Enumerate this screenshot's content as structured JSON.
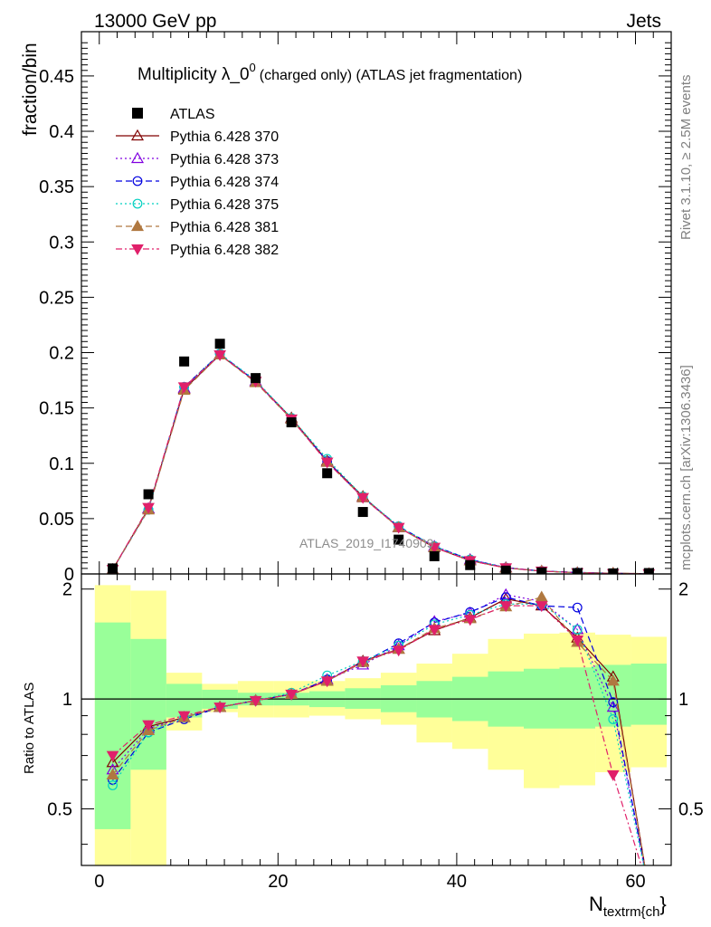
{
  "header": {
    "left": "13000 GeV pp",
    "right": "Jets",
    "side_top": "Rivet 3.1.10, ≥ 2.5M events",
    "side_bottom": "mcplots.cern.ch [arXiv:1306.3436]"
  },
  "chart_data": {
    "type": "line",
    "title": "Multiplicity λ_0",
    "title_sup": "0",
    "title_suffix": "(charged only) (ATLAS jet fragmentation)",
    "ylabel": "fraction/bin",
    "ratio_ylabel": "Ratio to ATLAS",
    "xlabel_main": "N",
    "xlabel_sub": "textrm{ch",
    "xlabel_close": "}",
    "watermark": "ATLAS_2019_I1740909",
    "xlim": [
      -2,
      64
    ],
    "ylim": [
      0,
      0.49
    ],
    "ratio_ylim": [
      0.35,
      2.2
    ],
    "x_ticks": [
      "0",
      "20",
      "40",
      "60"
    ],
    "y_ticks": [
      "0",
      "0.05",
      "0.1",
      "0.15",
      "0.2",
      "0.25",
      "0.3",
      "0.35",
      "0.4",
      "0.45"
    ],
    "ratio_ticks": [
      "0.5",
      "1",
      "2"
    ],
    "grid": false,
    "legend_position": "top-left",
    "x": [
      1.5,
      5.5,
      9.5,
      13.5,
      17.5,
      21.5,
      25.5,
      29.5,
      33.5,
      37.5,
      41.5,
      45.5,
      49.5,
      53.5,
      57.5,
      61.5
    ],
    "data": {
      "name": "ATLAS",
      "values": [
        0.005,
        0.072,
        0.192,
        0.208,
        0.177,
        0.137,
        0.091,
        0.056,
        0.031,
        0.016,
        0.008,
        0.003,
        0.0015,
        0.0008,
        0.0005,
        0.0008
      ]
    },
    "series": [
      {
        "name": "Pythia 6.428 370",
        "color": "#800000",
        "marker": "triangle-open",
        "dash": "solid",
        "values": [
          0.004,
          0.059,
          0.167,
          0.198,
          0.174,
          0.141,
          0.102,
          0.07,
          0.042,
          0.024,
          0.012,
          0.0055,
          0.0025,
          0.0012,
          0.0006,
          0.0002
        ],
        "ratio": [
          0.67,
          0.84,
          0.89,
          0.95,
          0.99,
          1.03,
          1.12,
          1.27,
          1.37,
          1.54,
          1.67,
          1.88,
          1.8,
          1.47,
          1.15,
          0.3
        ]
      },
      {
        "name": "Pythia 6.428 373",
        "color": "#8000e0",
        "marker": "triangle-open",
        "dash": "dotted",
        "values": [
          0.004,
          0.059,
          0.168,
          0.198,
          0.174,
          0.14,
          0.101,
          0.069,
          0.042,
          0.025,
          0.013,
          0.0058,
          0.0026,
          0.0012,
          0.0005,
          0.0001
        ],
        "ratio": [
          0.64,
          0.83,
          0.89,
          0.95,
          0.99,
          1.03,
          1.13,
          1.24,
          1.4,
          1.63,
          1.72,
          1.93,
          1.85,
          1.55,
          0.95,
          0.3
        ]
      },
      {
        "name": "Pythia 6.428 374",
        "color": "#0000e0",
        "marker": "circle-open",
        "dash": "dashed",
        "values": [
          0.004,
          0.058,
          0.169,
          0.199,
          0.174,
          0.14,
          0.102,
          0.069,
          0.043,
          0.025,
          0.013,
          0.0057,
          0.0026,
          0.0014,
          0.0005,
          0.0001
        ],
        "ratio": [
          0.6,
          0.81,
          0.88,
          0.95,
          0.99,
          1.03,
          1.13,
          1.26,
          1.42,
          1.62,
          1.73,
          1.9,
          1.8,
          1.78,
          0.98,
          0.3
        ]
      },
      {
        "name": "Pythia 6.428 375",
        "color": "#00d0c0",
        "marker": "circle-open",
        "dash": "dotted",
        "values": [
          0.004,
          0.058,
          0.169,
          0.199,
          0.175,
          0.141,
          0.104,
          0.07,
          0.043,
          0.025,
          0.013,
          0.0056,
          0.0025,
          0.0012,
          0.0004,
          0.0001
        ],
        "ratio": [
          0.58,
          0.81,
          0.89,
          0.95,
          0.99,
          1.04,
          1.16,
          1.27,
          1.4,
          1.6,
          1.7,
          1.82,
          1.82,
          1.55,
          0.88,
          0.3
        ]
      },
      {
        "name": "Pythia 6.428 381",
        "color": "#b07840",
        "marker": "triangle-filled",
        "dash": "dashed",
        "values": [
          0.004,
          0.058,
          0.166,
          0.198,
          0.173,
          0.14,
          0.101,
          0.069,
          0.042,
          0.024,
          0.012,
          0.0055,
          0.0026,
          0.0011,
          0.0006,
          0.0002
        ],
        "ratio": [
          0.62,
          0.82,
          0.89,
          0.95,
          0.99,
          1.03,
          1.12,
          1.26,
          1.37,
          1.56,
          1.66,
          1.79,
          1.9,
          1.43,
          1.12,
          0.3
        ]
      },
      {
        "name": "Pythia 6.428 382",
        "color": "#e0206a",
        "marker": "triangle-down-filled",
        "dash": "dashdot",
        "values": [
          0.004,
          0.06,
          0.169,
          0.198,
          0.174,
          0.14,
          0.101,
          0.069,
          0.042,
          0.024,
          0.012,
          0.0055,
          0.0026,
          0.0011,
          0.0003,
          0.0001
        ],
        "ratio": [
          0.7,
          0.85,
          0.9,
          0.95,
          0.99,
          1.03,
          1.12,
          1.27,
          1.36,
          1.55,
          1.65,
          1.8,
          1.8,
          1.45,
          0.62,
          0.3
        ]
      }
    ],
    "ratio_band_stat": [
      [
        -0.5,
        3.5,
        0.44,
        1.62
      ],
      [
        3.5,
        7.5,
        0.64,
        1.46
      ],
      [
        7.5,
        11.5,
        0.89,
        1.1
      ],
      [
        11.5,
        15.5,
        0.94,
        1.06
      ],
      [
        15.5,
        19.5,
        0.96,
        1.04
      ],
      [
        19.5,
        23.5,
        0.96,
        1.04
      ],
      [
        23.5,
        27.5,
        0.95,
        1.05
      ],
      [
        27.5,
        31.5,
        0.94,
        1.07
      ],
      [
        31.5,
        35.5,
        0.92,
        1.09
      ],
      [
        35.5,
        39.5,
        0.89,
        1.12
      ],
      [
        39.5,
        43.5,
        0.87,
        1.15
      ],
      [
        43.5,
        47.5,
        0.84,
        1.19
      ],
      [
        47.5,
        51.5,
        0.83,
        1.21
      ],
      [
        51.5,
        55.5,
        0.83,
        1.22
      ],
      [
        55.5,
        59.5,
        0.84,
        1.24
      ],
      [
        59.5,
        63.5,
        0.85,
        1.25
      ]
    ],
    "ratio_band_total": [
      [
        -0.5,
        3.5,
        0.33,
        2.05
      ],
      [
        3.5,
        7.5,
        0.33,
        1.98
      ],
      [
        7.5,
        11.5,
        0.82,
        1.18
      ],
      [
        11.5,
        15.5,
        0.92,
        1.1
      ],
      [
        15.5,
        19.5,
        0.89,
        1.12
      ],
      [
        19.5,
        23.5,
        0.89,
        1.12
      ],
      [
        23.5,
        27.5,
        0.9,
        1.12
      ],
      [
        27.5,
        31.5,
        0.88,
        1.14
      ],
      [
        31.5,
        35.5,
        0.85,
        1.18
      ],
      [
        35.5,
        39.5,
        0.76,
        1.25
      ],
      [
        39.5,
        43.5,
        0.73,
        1.33
      ],
      [
        43.5,
        47.5,
        0.64,
        1.46
      ],
      [
        47.5,
        51.5,
        0.57,
        1.51
      ],
      [
        51.5,
        55.5,
        0.58,
        1.52
      ],
      [
        55.5,
        59.5,
        0.63,
        1.5
      ],
      [
        59.5,
        63.5,
        0.65,
        1.48
      ]
    ]
  }
}
